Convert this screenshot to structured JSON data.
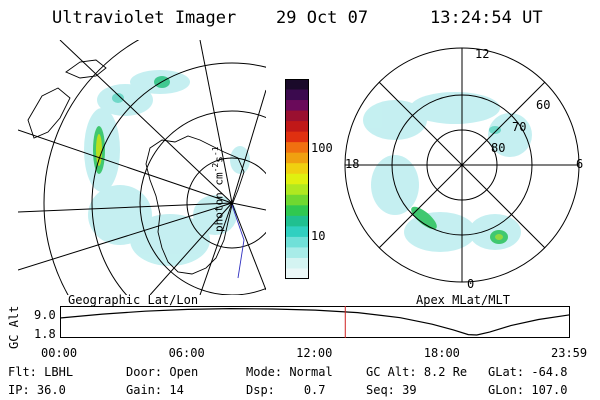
{
  "header": {
    "instrument": "Ultraviolet Imager",
    "date": "29 Oct 07",
    "time": "13:24:54 UT"
  },
  "left_panel": {
    "label": "Geographic Lat/Lon"
  },
  "right_panel": {
    "label": "Apex MLat/MLT",
    "mlt_labels": {
      "top": "12",
      "bottom": "0",
      "left": "18",
      "right": "6"
    },
    "lat_labels": [
      "60",
      "70",
      "80"
    ]
  },
  "colorbar": {
    "unit": "photon cm",
    "unit_exp1": "-2",
    "unit_mid": "s",
    "unit_exp2": "-1",
    "ticks": [
      "100",
      "10"
    ],
    "colors": [
      "#1a0a2a",
      "#3b0a4e",
      "#6a0a5a",
      "#9a1030",
      "#c01818",
      "#e03010",
      "#f07010",
      "#f0a010",
      "#f0d010",
      "#e0f010",
      "#b0e820",
      "#70d830",
      "#30c850",
      "#20c090",
      "#30d0c0",
      "#70e0d8",
      "#a8ece8",
      "#d4f4f2",
      "#eaf8f8"
    ]
  },
  "altitude_plot": {
    "ylabel": "GC Alt",
    "yticks": [
      "9.0",
      "1.8"
    ],
    "xticks": [
      "00:00",
      "06:00",
      "12:00",
      "18:00",
      "23:59"
    ],
    "marker_time_hours": 13.415,
    "series_alt": [
      {
        "t": 0,
        "alt": 6.5
      },
      {
        "t": 2,
        "alt": 7.6
      },
      {
        "t": 4,
        "alt": 8.4
      },
      {
        "t": 6,
        "alt": 8.9
      },
      {
        "t": 8,
        "alt": 9.1
      },
      {
        "t": 10,
        "alt": 9.0
      },
      {
        "t": 12,
        "alt": 8.7
      },
      {
        "t": 14,
        "alt": 8.0
      },
      {
        "t": 16,
        "alt": 6.6
      },
      {
        "t": 17.5,
        "alt": 4.8
      },
      {
        "t": 18.5,
        "alt": 3.2
      },
      {
        "t": 19.2,
        "alt": 1.9
      },
      {
        "t": 19.6,
        "alt": 1.8
      },
      {
        "t": 20.2,
        "alt": 2.6
      },
      {
        "t": 21.2,
        "alt": 4.4
      },
      {
        "t": 22.5,
        "alt": 6.1
      },
      {
        "t": 23.98,
        "alt": 7.4
      }
    ]
  },
  "info": {
    "row1": [
      {
        "label": "Flt:",
        "value": "LBHL"
      },
      {
        "label": "Door:",
        "value": "Open"
      },
      {
        "label": "Mode:",
        "value": "Normal"
      },
      {
        "label": "GC Alt:",
        "value": "8.2 Re"
      },
      {
        "label": "GLat:",
        "value": "-64.8"
      }
    ],
    "row2": [
      {
        "label": "IP:",
        "value": "36.0"
      },
      {
        "label": "Gain:",
        "value": "14"
      },
      {
        "label": "Dsp:",
        "value": "0.7"
      },
      {
        "label": "Seq:",
        "value": "39"
      },
      {
        "label": "GLon:",
        "value": "107.0"
      }
    ]
  }
}
